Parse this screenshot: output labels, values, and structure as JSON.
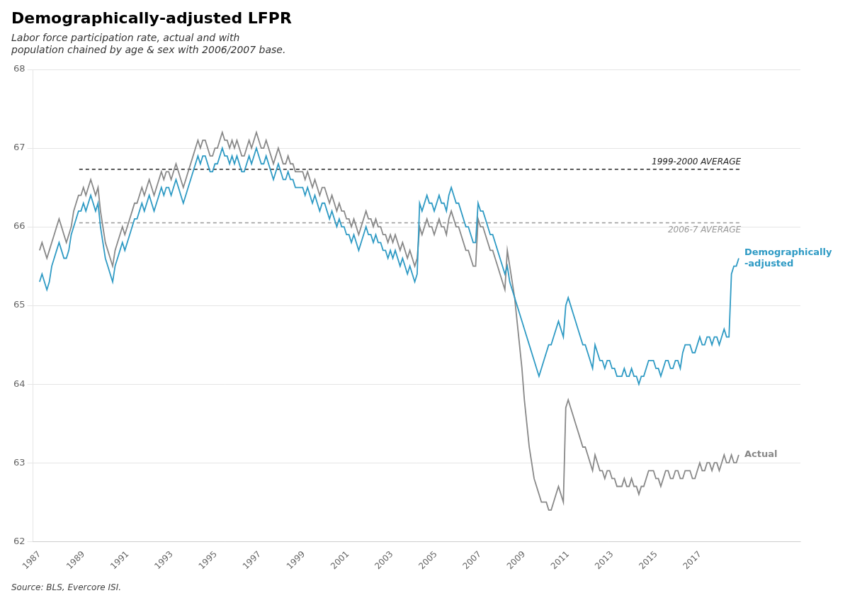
{
  "chart_data": {
    "type": "line",
    "title": "Demographically-adjusted LFPR",
    "subtitle": "Labor force participation rate, actual and with\npopulation chained by age & sex with 2006/2007 base.",
    "source": "Source: BLS, Evercore ISI.",
    "xlim": [
      1986.7,
      2021.55
    ],
    "xticks": [
      1987,
      1989,
      1991,
      1993,
      1995,
      1997,
      1999,
      2001,
      2003,
      2005,
      2007,
      2009,
      2011,
      2013,
      2015,
      2017
    ],
    "ylim": [
      62,
      68
    ],
    "yticks": [
      62,
      63,
      64,
      65,
      66,
      67,
      68
    ],
    "grid": "y",
    "x": [
      1987,
      1987.111,
      1987.221,
      1987.332,
      1987.443,
      1987.553,
      1987.664,
      1987.774,
      1987.885,
      1987.996,
      1988.106,
      1988.217,
      1988.328,
      1988.438,
      1988.549,
      1988.659,
      1988.77,
      1988.881,
      1988.991,
      1989.102,
      1989.213,
      1989.323,
      1989.434,
      1989.544,
      1989.655,
      1989.766,
      1989.876,
      1989.987,
      1990.098,
      1990.208,
      1990.319,
      1990.429,
      1990.54,
      1990.651,
      1990.761,
      1990.872,
      1990.983,
      1991.093,
      1991.204,
      1991.314,
      1991.425,
      1991.536,
      1991.646,
      1991.757,
      1991.868,
      1991.978,
      1992.089,
      1992.199,
      1992.31,
      1992.421,
      1992.531,
      1992.642,
      1992.753,
      1992.863,
      1992.974,
      1993.084,
      1993.195,
      1993.306,
      1993.416,
      1993.527,
      1993.638,
      1993.748,
      1993.859,
      1993.97,
      1994.08,
      1994.191,
      1994.301,
      1994.412,
      1994.523,
      1994.633,
      1994.744,
      1994.855,
      1994.965,
      1995.076,
      1995.186,
      1995.297,
      1995.408,
      1995.518,
      1995.629,
      1995.74,
      1995.85,
      1995.961,
      1996.071,
      1996.182,
      1996.293,
      1996.403,
      1996.514,
      1996.625,
      1996.735,
      1996.846,
      1996.956,
      1997.067,
      1997.178,
      1997.288,
      1997.399,
      1997.51,
      1997.62,
      1997.731,
      1997.841,
      1997.952,
      1998.063,
      1998.173,
      1998.284,
      1998.395,
      1998.505,
      1998.616,
      1998.726,
      1998.837,
      1998.948,
      1999.058,
      1999.169,
      1999.28,
      1999.39,
      1999.501,
      1999.611,
      1999.722,
      1999.833,
      1999.943,
      2000.054,
      2000.165,
      2000.275,
      2000.386,
      2000.497,
      2000.607,
      2000.718,
      2000.828,
      2000.939,
      2001.05,
      2001.16,
      2001.271,
      2001.382,
      2001.492,
      2001.603,
      2001.713,
      2001.824,
      2001.935,
      2002.045,
      2002.156,
      2002.267,
      2002.377,
      2002.488,
      2002.598,
      2002.709,
      2002.82,
      2002.93,
      2003.041,
      2003.152,
      2003.262,
      2003.373,
      2003.483,
      2003.594,
      2003.705,
      2003.815,
      2003.926,
      2004.037,
      2004.147,
      2004.258,
      2004.368,
      2004.479,
      2004.59,
      2004.7,
      2004.811,
      2004.922,
      2005.032,
      2005.143,
      2005.253,
      2005.364,
      2005.475,
      2005.585,
      2005.696,
      2005.807,
      2005.917,
      2006.028,
      2006.139,
      2006.249,
      2006.36,
      2006.47,
      2006.581,
      2006.692,
      2006.802,
      2006.913,
      2007.024,
      2007.134,
      2007.245,
      2007.355,
      2007.466,
      2007.577,
      2007.687,
      2007.798,
      2007.909,
      2008.019,
      2008.13,
      2008.24,
      2008.351,
      2008.462,
      2008.572,
      2008.683,
      2008.794,
      2008.904,
      2009.015,
      2009.125,
      2009.236,
      2009.347,
      2009.457,
      2009.568,
      2009.679,
      2009.789,
      2009.9,
      2010.01,
      2010.121,
      2010.232,
      2010.342,
      2010.453,
      2010.564,
      2010.674,
      2010.785,
      2010.895,
      2011.006,
      2011.117,
      2011.227,
      2011.338,
      2011.449,
      2011.559,
      2011.67,
      2011.78,
      2011.891,
      2012.002,
      2012.112,
      2012.223,
      2012.334,
      2012.444,
      2012.555,
      2012.666,
      2012.776,
      2012.887,
      2012.997,
      2013.108,
      2013.219,
      2013.329,
      2013.44,
      2013.551,
      2013.661,
      2013.772,
      2013.882,
      2013.993,
      2014.104,
      2014.214,
      2014.325,
      2014.436,
      2014.546,
      2014.657,
      2014.767,
      2014.878,
      2014.989,
      2015.099,
      2015.21,
      2015.321,
      2015.431,
      2015.542,
      2015.652,
      2015.763,
      2015.874,
      2015.984,
      2016.095,
      2016.206,
      2016.316,
      2016.427,
      2016.537,
      2016.648,
      2016.759,
      2016.869,
      2016.98,
      2017.091,
      2017.201,
      2017.312,
      2017.422,
      2017.533,
      2017.644,
      2017.754,
      2017.865,
      2017.976,
      2018.086,
      2018.197,
      2018.307,
      2018.418,
      2018.529,
      2018.639,
      2018.75
    ],
    "series": [
      {
        "name": "Actual",
        "color": "#888888",
        "values": [
          65.7,
          65.8,
          65.7,
          65.6,
          65.7,
          65.8,
          65.9,
          66.0,
          66.1,
          66.0,
          65.9,
          65.8,
          65.9,
          66.0,
          66.2,
          66.3,
          66.4,
          66.4,
          66.5,
          66.4,
          66.5,
          66.6,
          66.5,
          66.4,
          66.5,
          66.2,
          66.0,
          65.8,
          65.7,
          65.6,
          65.5,
          65.7,
          65.8,
          65.9,
          66.0,
          65.9,
          66.0,
          66.1,
          66.2,
          66.3,
          66.3,
          66.4,
          66.5,
          66.4,
          66.5,
          66.6,
          66.5,
          66.4,
          66.5,
          66.6,
          66.7,
          66.6,
          66.7,
          66.7,
          66.6,
          66.7,
          66.8,
          66.7,
          66.6,
          66.5,
          66.6,
          66.7,
          66.8,
          66.9,
          67.0,
          67.1,
          67.0,
          67.1,
          67.1,
          67.0,
          66.9,
          66.9,
          67.0,
          67.0,
          67.1,
          67.2,
          67.1,
          67.1,
          67.0,
          67.1,
          67.0,
          67.1,
          67.0,
          66.9,
          66.9,
          67.0,
          67.1,
          67.0,
          67.1,
          67.2,
          67.1,
          67.0,
          67.0,
          67.1,
          67.0,
          66.9,
          66.8,
          66.9,
          67.0,
          66.9,
          66.8,
          66.8,
          66.9,
          66.8,
          66.8,
          66.7,
          66.7,
          66.7,
          66.7,
          66.6,
          66.7,
          66.6,
          66.5,
          66.6,
          66.5,
          66.4,
          66.5,
          66.5,
          66.4,
          66.3,
          66.4,
          66.3,
          66.2,
          66.3,
          66.2,
          66.2,
          66.1,
          66.1,
          66.0,
          66.1,
          66.0,
          65.9,
          66.0,
          66.1,
          66.2,
          66.1,
          66.1,
          66.0,
          66.1,
          66.0,
          66.0,
          65.9,
          65.9,
          65.8,
          65.9,
          65.8,
          65.9,
          65.8,
          65.7,
          65.8,
          65.7,
          65.6,
          65.7,
          65.6,
          65.5,
          65.6,
          66.0,
          65.9,
          66.0,
          66.1,
          66.0,
          66.0,
          65.9,
          66.0,
          66.1,
          66.0,
          66.0,
          65.9,
          66.1,
          66.2,
          66.1,
          66.0,
          66.0,
          65.9,
          65.8,
          65.7,
          65.7,
          65.6,
          65.5,
          65.5,
          66.1,
          66.0,
          66.0,
          65.9,
          65.8,
          65.7,
          65.7,
          65.6,
          65.5,
          65.4,
          65.3,
          65.2,
          65.7,
          65.5,
          65.3,
          65.1,
          64.8,
          64.5,
          64.2,
          63.8,
          63.5,
          63.2,
          63.0,
          62.8,
          62.7,
          62.6,
          62.5,
          62.5,
          62.5,
          62.4,
          62.4,
          62.5,
          62.6,
          62.7,
          62.6,
          62.5,
          63.7,
          63.8,
          63.7,
          63.6,
          63.5,
          63.4,
          63.3,
          63.2,
          63.2,
          63.1,
          63.0,
          62.9,
          63.1,
          63.0,
          62.9,
          62.9,
          62.8,
          62.9,
          62.9,
          62.8,
          62.8,
          62.7,
          62.7,
          62.7,
          62.8,
          62.7,
          62.7,
          62.8,
          62.7,
          62.7,
          62.6,
          62.7,
          62.7,
          62.8,
          62.9,
          62.9,
          62.9,
          62.8,
          62.8,
          62.7,
          62.8,
          62.9,
          62.9,
          62.8,
          62.8,
          62.9,
          62.9,
          62.8,
          62.8,
          62.9,
          62.9,
          62.9,
          62.8,
          62.8,
          62.9,
          63.0,
          62.9,
          62.9,
          63.0,
          63.0,
          62.9,
          63.0,
          63.0,
          62.9,
          63.0,
          63.1,
          63.0,
          63.0,
          63.1,
          63.0,
          63.0,
          63.1
        ]
      },
      {
        "name": "Demographically\n-adjusted",
        "color": "#2E9AC4",
        "values": [
          65.3,
          65.4,
          65.3,
          65.2,
          65.3,
          65.5,
          65.6,
          65.7,
          65.8,
          65.7,
          65.6,
          65.6,
          65.7,
          65.9,
          66.0,
          66.1,
          66.2,
          66.2,
          66.3,
          66.2,
          66.3,
          66.4,
          66.3,
          66.2,
          66.3,
          66.0,
          65.8,
          65.6,
          65.5,
          65.4,
          65.3,
          65.5,
          65.6,
          65.7,
          65.8,
          65.7,
          65.8,
          65.9,
          66.0,
          66.1,
          66.1,
          66.2,
          66.3,
          66.2,
          66.3,
          66.4,
          66.3,
          66.2,
          66.3,
          66.4,
          66.5,
          66.4,
          66.5,
          66.5,
          66.4,
          66.5,
          66.6,
          66.5,
          66.4,
          66.3,
          66.4,
          66.5,
          66.6,
          66.7,
          66.8,
          66.9,
          66.8,
          66.9,
          66.9,
          66.8,
          66.7,
          66.7,
          66.8,
          66.8,
          66.9,
          67.0,
          66.9,
          66.9,
          66.8,
          66.9,
          66.8,
          66.9,
          66.8,
          66.7,
          66.7,
          66.8,
          66.9,
          66.8,
          66.9,
          67.0,
          66.9,
          66.8,
          66.8,
          66.9,
          66.8,
          66.7,
          66.6,
          66.7,
          66.8,
          66.7,
          66.6,
          66.6,
          66.7,
          66.6,
          66.6,
          66.5,
          66.5,
          66.5,
          66.5,
          66.4,
          66.5,
          66.4,
          66.3,
          66.4,
          66.3,
          66.2,
          66.3,
          66.3,
          66.2,
          66.1,
          66.2,
          66.1,
          66.0,
          66.1,
          66.0,
          66.0,
          65.9,
          65.9,
          65.8,
          65.9,
          65.8,
          65.7,
          65.8,
          65.9,
          66.0,
          65.9,
          65.9,
          65.8,
          65.9,
          65.8,
          65.8,
          65.7,
          65.7,
          65.6,
          65.7,
          65.6,
          65.7,
          65.6,
          65.5,
          65.6,
          65.5,
          65.4,
          65.5,
          65.4,
          65.3,
          65.4,
          66.3,
          66.2,
          66.3,
          66.4,
          66.3,
          66.3,
          66.2,
          66.3,
          66.4,
          66.3,
          66.3,
          66.2,
          66.4,
          66.5,
          66.4,
          66.3,
          66.3,
          66.2,
          66.1,
          66.0,
          66.0,
          65.9,
          65.8,
          65.8,
          66.3,
          66.2,
          66.2,
          66.1,
          66.0,
          65.9,
          65.9,
          65.8,
          65.7,
          65.6,
          65.5,
          65.4,
          65.5,
          65.3,
          65.2,
          65.1,
          65.0,
          64.9,
          64.8,
          64.7,
          64.6,
          64.5,
          64.4,
          64.3,
          64.2,
          64.1,
          64.2,
          64.3,
          64.4,
          64.5,
          64.5,
          64.6,
          64.7,
          64.8,
          64.7,
          64.6,
          65.0,
          65.1,
          65.0,
          64.9,
          64.8,
          64.7,
          64.6,
          64.5,
          64.5,
          64.4,
          64.3,
          64.2,
          64.5,
          64.4,
          64.3,
          64.3,
          64.2,
          64.3,
          64.3,
          64.2,
          64.2,
          64.1,
          64.1,
          64.1,
          64.2,
          64.1,
          64.1,
          64.2,
          64.1,
          64.1,
          64.0,
          64.1,
          64.1,
          64.2,
          64.3,
          64.3,
          64.3,
          64.2,
          64.2,
          64.1,
          64.2,
          64.3,
          64.3,
          64.2,
          64.2,
          64.3,
          64.3,
          64.2,
          64.4,
          64.5,
          64.5,
          64.5,
          64.4,
          64.4,
          64.5,
          64.6,
          64.5,
          64.5,
          64.6,
          64.6,
          64.5,
          64.6,
          64.6,
          64.5,
          64.6,
          64.7,
          64.6,
          64.6,
          65.4,
          65.5,
          65.5,
          65.6
        ]
      }
    ],
    "reference_lines": [
      {
        "label": "1999-2000 AVERAGE",
        "value": 66.73,
        "x": [
          1988.8,
          2018.85
        ],
        "color": "#222222",
        "line_style": "dashed"
      },
      {
        "label": "2006-7 AVERAGE",
        "value": 66.05,
        "x": [
          1988.8,
          2018.85
        ],
        "color": "#999999",
        "line_style": "dashed"
      }
    ]
  }
}
